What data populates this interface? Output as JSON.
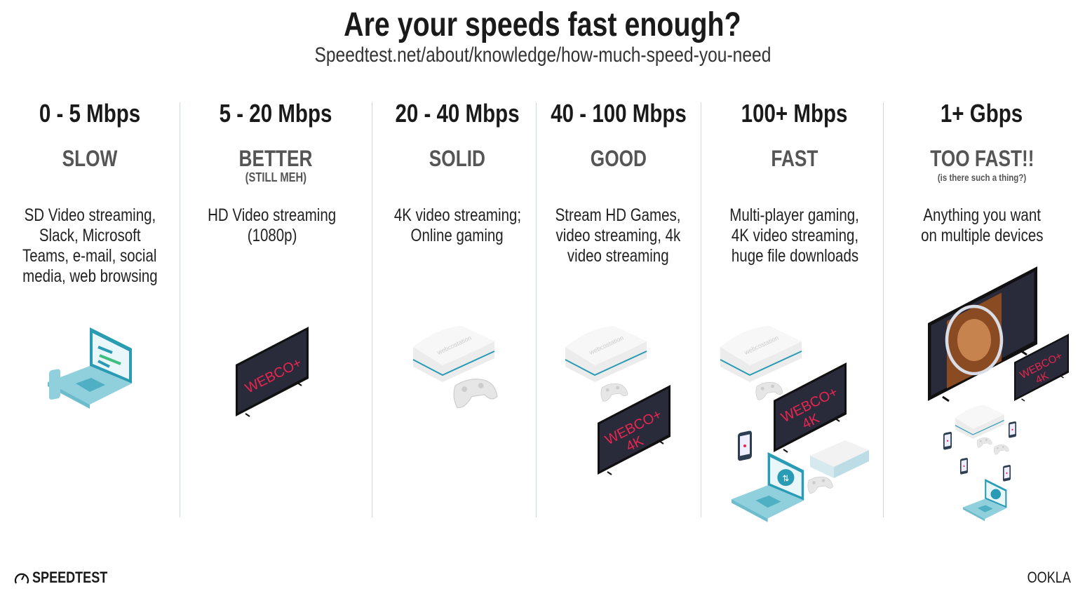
{
  "title": "Are your speeds fast enough?",
  "subtitle": "Speedtest.net/about/knowledge/how-much-speed-you-need",
  "columns": [
    {
      "range": "0 - 5 Mbps",
      "category": "SLOW",
      "note": "",
      "description": [
        "SD Video streaming,",
        "Slack, Microsoft",
        "Teams, e-mail, social",
        "media, web browsing"
      ]
    },
    {
      "range": "5 - 20 Mbps",
      "category": "BETTER",
      "note": "(STILL MEH)",
      "description": [
        "HD Video streaming",
        "(1080p)"
      ]
    },
    {
      "range": "20 - 40 Mbps",
      "category": "SOLID",
      "note": "",
      "description": [
        "4K video streaming;",
        "Online gaming"
      ]
    },
    {
      "range": "40 - 100 Mbps",
      "category": "GOOD",
      "note": "",
      "description": [
        "Stream HD Games,",
        "video streaming, 4k",
        "video streaming"
      ]
    },
    {
      "range": "100+ Mbps",
      "category": "FAST",
      "note": "",
      "description": [
        "Multi-player gaming,",
        "4K video streaming,",
        "huge file downloads"
      ]
    },
    {
      "range": "1+ Gbps",
      "category": "TOO FAST!!",
      "note": "(is there such a thing?)",
      "description": [
        "Anything you want",
        "on multiple devices"
      ]
    }
  ],
  "tv_brand": "WEBCO+",
  "tv_4k": "4K",
  "console_brand": "webcostation",
  "footer": {
    "left_logo": "SPEEDTEST",
    "right_logo": "OOKLA"
  },
  "colors": {
    "tv_screen": "#2a2b3a",
    "tv_text": "#e8264f",
    "accent_teal": "#2a9bb5",
    "laptop": "#8fd0dc",
    "divider": "#cfd8db"
  }
}
